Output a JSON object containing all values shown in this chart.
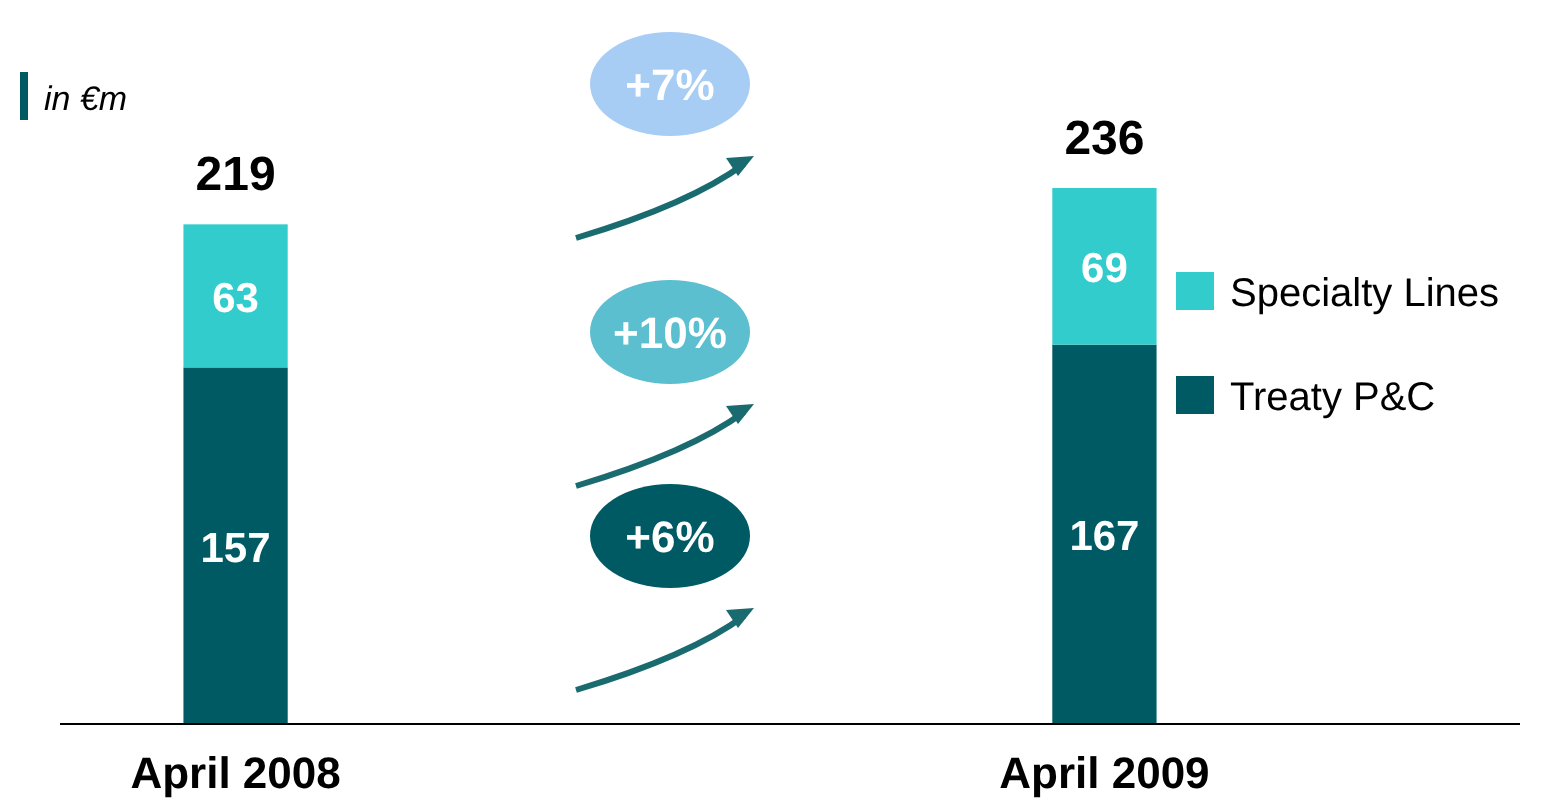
{
  "chart_data": {
    "type": "bar",
    "stacked": true,
    "ylabel": "in €m",
    "categories": [
      "April 2008",
      "April 2009"
    ],
    "series": [
      {
        "name": "Treaty P&C",
        "color": "#005a64",
        "values": [
          157,
          167
        ]
      },
      {
        "name": "Specialty Lines",
        "color": "#33cccc",
        "values": [
          63,
          69
        ]
      }
    ],
    "totals": [
      "219",
      "236"
    ],
    "data_labels": true,
    "legend": "right",
    "annotations": [
      "+6%",
      "+10%",
      "+7%"
    ]
  }
}
